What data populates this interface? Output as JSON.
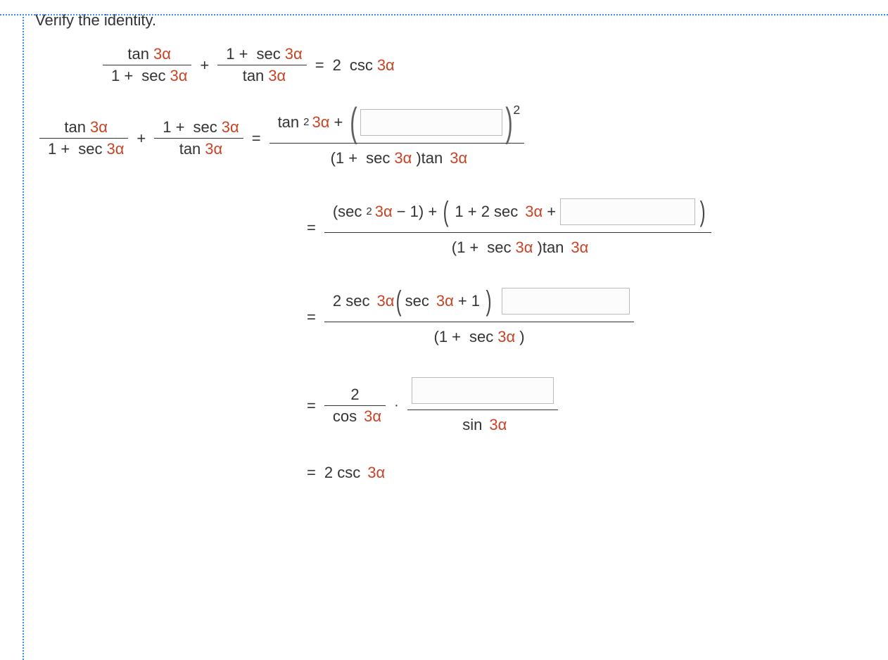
{
  "title": "Verify the identity.",
  "tok": {
    "tan": "tan",
    "sec": "sec",
    "csc": "csc",
    "cos": "cos",
    "sin": "sin",
    "arg": "3α",
    "one": "1",
    "two": "2",
    "plus": "+",
    "minus": "−",
    "eq": "=",
    "dot": "·",
    "sq": "2",
    "oneplus": "1 +"
  },
  "steps": {
    "s1_num_extra": "tan",
    "s1_sup_outer": "2",
    "s1_den_text": "(1 +",
    "s1_den_text2": ")tan",
    "s2_pre": "(sec",
    "s2_mid": " − 1) + ",
    "s2_mid2": "1 + 2 sec",
    "s3_num_pre": "2 sec",
    "s3_num_mid": "sec",
    "s3_num_post": " + 1",
    "s4_final": "2 csc"
  },
  "blanks": {
    "b1_width": 200,
    "b2_width": 190,
    "b3_width": 180,
    "b4_width": 200
  },
  "colors": {
    "arg": "#c94426",
    "text": "#333333"
  }
}
